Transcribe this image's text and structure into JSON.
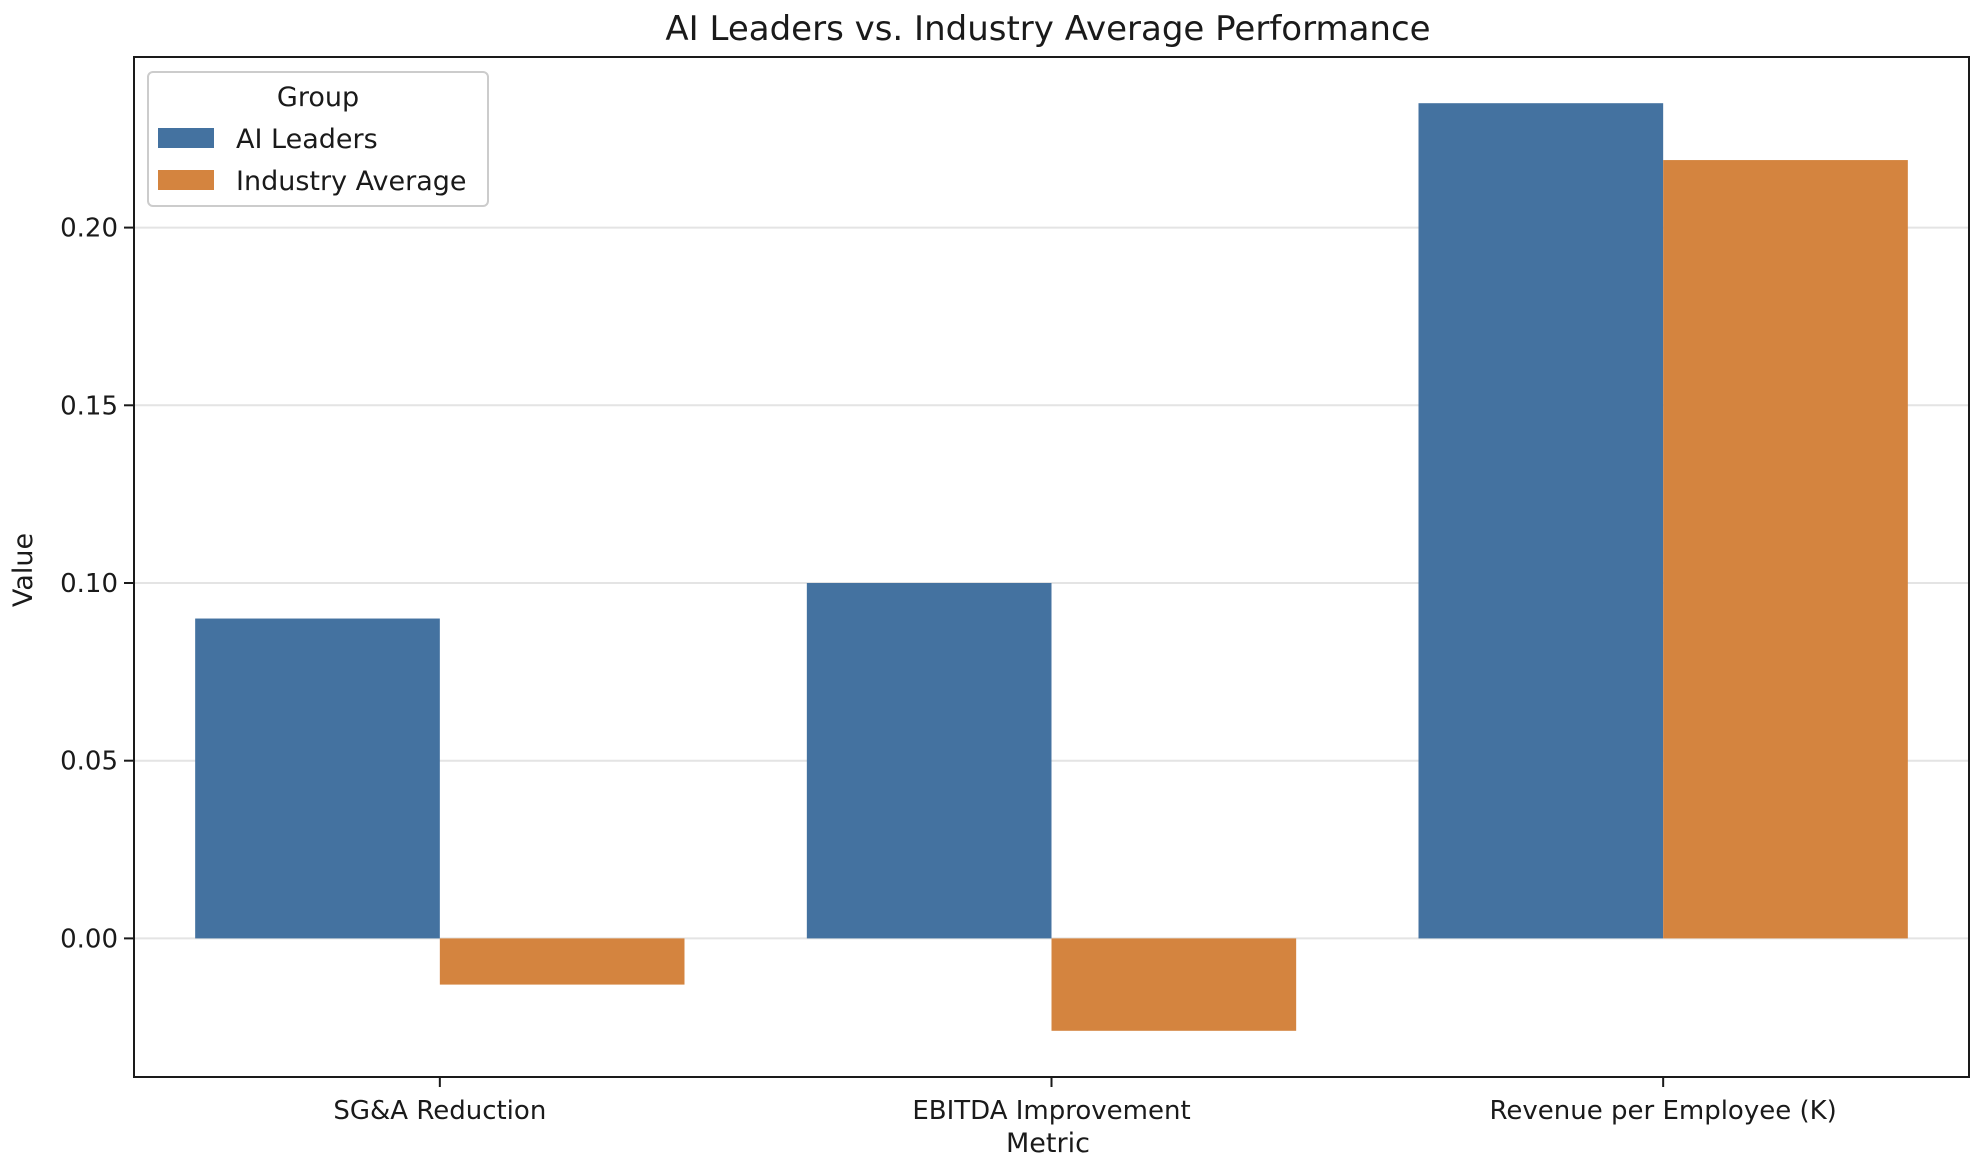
{
  "chart_data": {
    "type": "bar",
    "title": "AI Leaders vs. Industry Average Performance",
    "xlabel": "Metric",
    "ylabel": "Value",
    "categories": [
      "SG&A Reduction",
      "EBITDA Improvement",
      "Revenue per Employee (K)"
    ],
    "series": [
      {
        "name": "AI Leaders",
        "color": "#4472a0",
        "values": [
          0.09,
          0.1,
          0.235
        ]
      },
      {
        "name": "Industry Average",
        "color": "#d4843f",
        "values": [
          -0.013,
          -0.026,
          0.219
        ]
      }
    ],
    "ylim": [
      -0.039,
      0.248
    ],
    "yticks": [
      0.0,
      0.05,
      0.1,
      0.15,
      0.2
    ],
    "ytick_labels": [
      "0.00",
      "0.05",
      "0.10",
      "0.15",
      "0.20"
    ],
    "grid": true,
    "legend": {
      "title": "Group",
      "position": "top-left"
    }
  }
}
